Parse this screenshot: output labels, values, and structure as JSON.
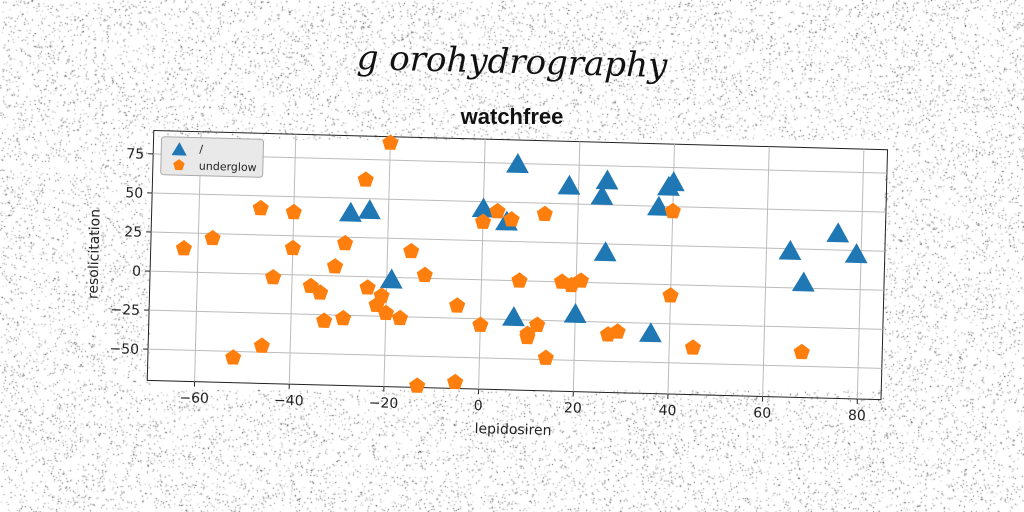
{
  "suptitle": "g orohydrography",
  "chart_data": {
    "type": "scatter",
    "title": "watchfree",
    "xlabel": "lepidosiren",
    "ylabel": "resolicitation",
    "xlim": [
      -70,
      85
    ],
    "ylim": [
      -70,
      90
    ],
    "xticks": [
      -60,
      -40,
      -20,
      0,
      20,
      40,
      60,
      80
    ],
    "yticks": [
      -50,
      -25,
      0,
      25,
      50,
      75
    ],
    "grid": true,
    "legend_position": "top-left",
    "series": [
      {
        "name": "/",
        "marker": "triangle",
        "color": "#1f77b4",
        "x": [
          7,
          18,
          26,
          25,
          37,
          39,
          40,
          0,
          5,
          -28,
          -24,
          -19,
          26,
          65,
          68,
          75,
          79,
          7,
          20,
          36
        ],
        "y": [
          74,
          61,
          65,
          55,
          49,
          62,
          65,
          45,
          37,
          40,
          42,
          -2,
          19,
          23,
          3,
          35,
          22,
          -24,
          -21,
          -32
        ]
      },
      {
        "name": "underglow",
        "marker": "pentagon",
        "color": "#ff7f0e",
        "x": [
          -20,
          -25,
          -47,
          -40,
          -63,
          -57,
          -40,
          -29,
          -31,
          -44,
          -34,
          -36,
          -33,
          -29,
          -24,
          -22,
          -21,
          -20,
          -17,
          -15,
          -12,
          -5,
          0,
          3,
          8,
          10,
          14,
          0,
          6,
          13,
          17,
          19,
          21,
          27,
          29,
          40,
          40,
          45,
          68,
          10,
          12,
          -13,
          -5,
          -52,
          -46
        ],
        "y": [
          86,
          62,
          42,
          40,
          15,
          22,
          17,
          21,
          6,
          -2,
          -11,
          -7,
          -29,
          -27,
          -7,
          -18,
          -12,
          -23,
          -26,
          17,
          2,
          -17,
          -29,
          44,
          0,
          -36,
          -49,
          37,
          39,
          43,
          0,
          -2,
          1,
          -33,
          -31,
          -7,
          47,
          -40,
          -41,
          -34,
          -28,
          -69,
          -66,
          -54,
          -46
        ]
      }
    ]
  }
}
